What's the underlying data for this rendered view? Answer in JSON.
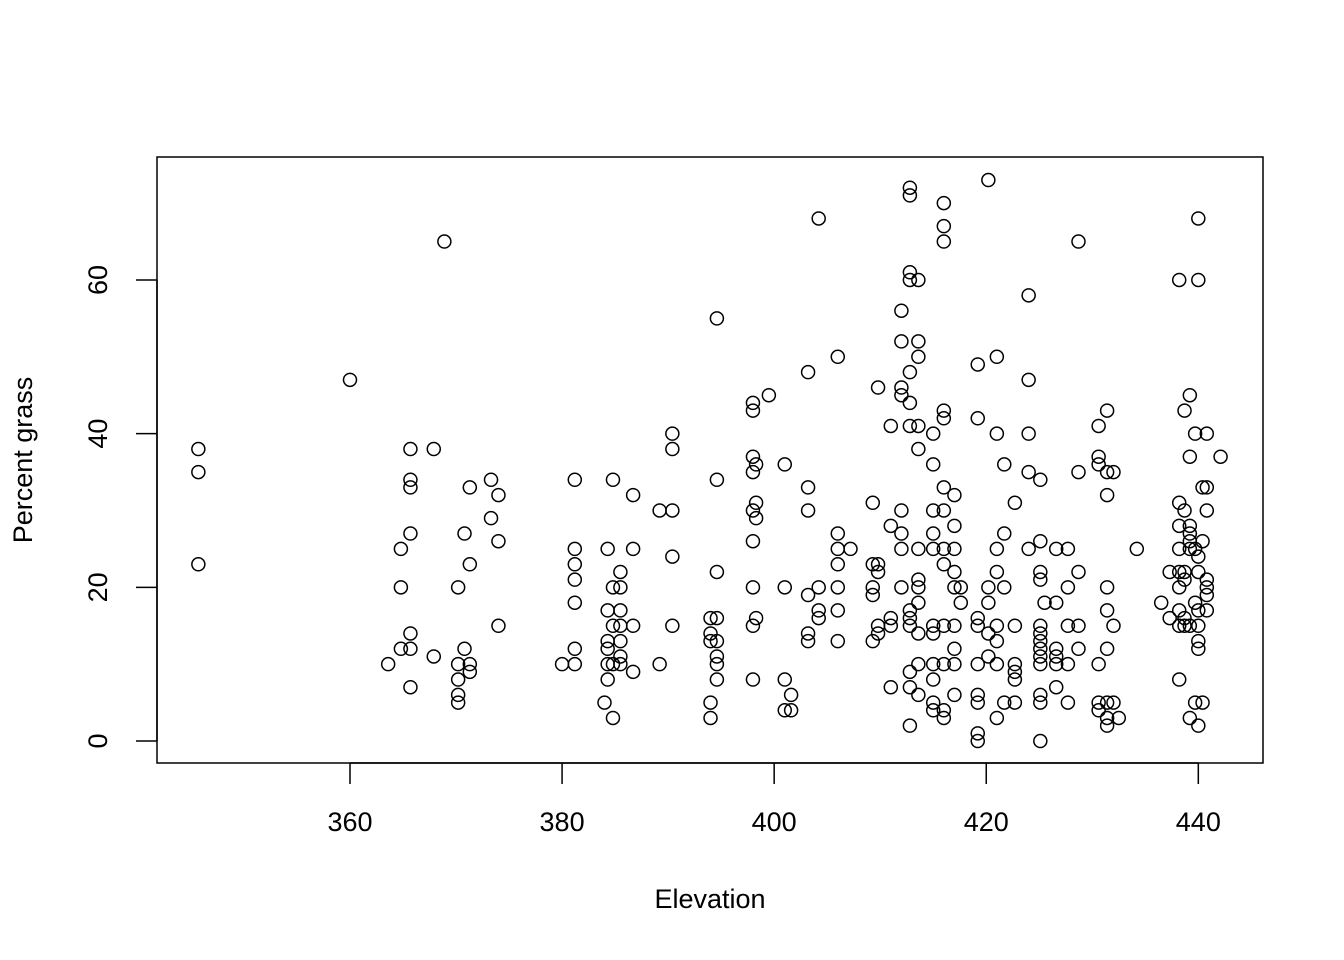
{
  "chart_data": {
    "type": "scatter",
    "x_label": "Elevation",
    "y_label": "Percent grass",
    "xlim": [
      341.8,
      446.1
    ],
    "ylim": [
      -2.86,
      76
    ],
    "xticks": [
      360,
      380,
      400,
      420,
      440
    ],
    "yticks": [
      0,
      20,
      40,
      60
    ],
    "color": "#000000",
    "x": [
      345.7,
      345.7,
      345.7,
      360,
      363.6,
      364.8,
      364.8,
      364.8,
      365.7,
      365.7,
      365.7,
      365.7,
      365.7,
      365.7,
      365.7,
      367.9,
      367.9,
      368.9,
      370.2,
      370.2,
      370.2,
      370.2,
      370.2,
      370.8,
      370.8,
      371.3,
      371.3,
      371.3,
      371.3,
      373.3,
      373.3,
      374,
      374,
      374,
      380,
      381.2,
      381.2,
      381.2,
      381.2,
      381.2,
      381.2,
      381.2,
      384,
      384.3,
      384.3,
      384.3,
      384.3,
      384.3,
      384.3,
      384.8,
      384.8,
      384.8,
      384.8,
      384.8,
      385.5,
      385.5,
      385.5,
      385.5,
      385.5,
      385.5,
      385.5,
      386.7,
      386.7,
      386.7,
      386.7,
      389.2,
      389.2,
      390.4,
      390.4,
      390.4,
      390.4,
      390.4,
      394,
      394,
      394,
      394,
      394,
      394.6,
      394.6,
      394.6,
      394.6,
      394.6,
      394.6,
      394.6,
      394.6,
      398,
      398,
      398,
      398,
      398,
      398,
      398,
      398,
      398,
      398.3,
      398.3,
      398.3,
      398.3,
      399.5,
      401,
      401,
      401,
      401,
      401.6,
      401.6,
      403.2,
      403.2,
      403.2,
      403.2,
      403.2,
      403.2,
      404.2,
      404.2,
      404.2,
      404.2,
      406,
      406,
      406,
      406,
      406,
      406,
      406,
      407.2,
      409.3,
      409.3,
      409.3,
      409.3,
      409.3,
      409.8,
      409.8,
      409.8,
      409.8,
      409.8,
      411,
      411,
      411,
      411,
      411,
      412,
      412,
      412,
      412,
      412,
      412,
      412,
      412,
      412.8,
      412.8,
      412.8,
      412.8,
      412.8,
      412.8,
      412.8,
      412.8,
      412.8,
      412.8,
      412.8,
      412.8,
      412.8,
      413.6,
      413.6,
      413.6,
      413.6,
      413.6,
      413.6,
      413.6,
      413.6,
      413.6,
      413.6,
      413.6,
      413.6,
      415,
      415,
      415,
      415,
      415,
      415,
      415,
      415,
      415,
      415,
      415,
      416,
      416,
      416,
      416,
      416,
      416,
      416,
      416,
      416,
      416,
      416,
      416,
      416,
      417,
      417,
      417,
      417,
      417,
      417,
      417,
      417,
      417,
      417.6,
      417.6,
      419.2,
      419.2,
      419.2,
      419.2,
      419.2,
      419.2,
      419.2,
      419.2,
      419.2,
      420.2,
      420.2,
      420.2,
      420.2,
      420.2,
      421,
      421,
      421,
      421,
      421,
      421,
      421,
      421,
      421.7,
      421.7,
      421.7,
      421.7,
      422.7,
      422.7,
      422.7,
      422.7,
      422.7,
      422.7,
      424,
      424,
      424,
      424,
      424,
      425.1,
      425.1,
      425.1,
      425.1,
      425.1,
      425.1,
      425.1,
      425.1,
      425.1,
      425.1,
      425.1,
      425.1,
      425.1,
      425.5,
      426.6,
      426.6,
      426.6,
      426.6,
      426.6,
      426.6,
      427.7,
      427.7,
      427.7,
      427.7,
      427.7,
      428.7,
      428.7,
      428.7,
      428.7,
      428.7,
      430.6,
      430.6,
      430.6,
      430.6,
      430.6,
      430.6,
      431.4,
      431.4,
      431.4,
      431.4,
      431.4,
      431.4,
      431.4,
      431.4,
      431.4,
      432,
      432,
      432,
      432.5,
      434.2,
      436.5,
      437.3,
      437.3,
      438.2,
      438.2,
      438.2,
      438.2,
      438.2,
      438.2,
      438.2,
      438.2,
      438.2,
      438.7,
      438.7,
      438.7,
      438.7,
      438.7,
      438.7,
      439.2,
      439.2,
      439.2,
      439.2,
      439.2,
      439.2,
      439.2,
      439.2,
      439.7,
      439.7,
      439.7,
      439.7,
      440,
      440,
      440,
      440,
      440,
      440,
      440,
      440,
      440,
      440.4,
      440.4,
      440.4,
      440.8,
      440.8,
      440.8,
      440.8,
      440.8,
      440.8,
      440.8,
      442.1
    ],
    "values": [
      38,
      35,
      23,
      47,
      10,
      25,
      20,
      12,
      38,
      34,
      33,
      27,
      14,
      12,
      7,
      38,
      11,
      65,
      20,
      10,
      8,
      6,
      5,
      27,
      12,
      33,
      23,
      10,
      9,
      34,
      29,
      32,
      26,
      15,
      10,
      34,
      25,
      23,
      21,
      18,
      12,
      10,
      5,
      25,
      17,
      13,
      12,
      10,
      8,
      34,
      20,
      15,
      10,
      3,
      22,
      20,
      17,
      15,
      13,
      11,
      10,
      32,
      25,
      15,
      9,
      30,
      10,
      40,
      38,
      30,
      24,
      15,
      16,
      14,
      13,
      5,
      3,
      55,
      34,
      22,
      16,
      13,
      11,
      10,
      8,
      44,
      43,
      37,
      35,
      30,
      26,
      20,
      15,
      8,
      36,
      31,
      29,
      16,
      45,
      36,
      20,
      8,
      4,
      6,
      4,
      48,
      33,
      30,
      19,
      14,
      13,
      68,
      20,
      17,
      16,
      50,
      27,
      25,
      23,
      20,
      17,
      13,
      25,
      31,
      23,
      20,
      19,
      13,
      46,
      23,
      22,
      15,
      14,
      41,
      28,
      16,
      15,
      7,
      56,
      52,
      46,
      45,
      30,
      27,
      25,
      20,
      72,
      71,
      61,
      60,
      48,
      44,
      41,
      17,
      16,
      15,
      9,
      7,
      2,
      60,
      52,
      50,
      41,
      38,
      25,
      21,
      20,
      18,
      14,
      10,
      6,
      40,
      36,
      30,
      27,
      25,
      15,
      14,
      10,
      8,
      5,
      4,
      70,
      67,
      65,
      43,
      42,
      33,
      30,
      25,
      23,
      15,
      10,
      4,
      3,
      32,
      28,
      25,
      22,
      20,
      15,
      12,
      10,
      6,
      20,
      18,
      49,
      42,
      16,
      15,
      10,
      6,
      5,
      1,
      0,
      73,
      20,
      18,
      14,
      11,
      50,
      40,
      25,
      22,
      15,
      13,
      10,
      3,
      36,
      27,
      20,
      5,
      31,
      15,
      10,
      9,
      8,
      5,
      58,
      47,
      40,
      35,
      25,
      34,
      26,
      22,
      21,
      15,
      14,
      13,
      12,
      11,
      10,
      6,
      5,
      0,
      18,
      25,
      18,
      12,
      11,
      10,
      7,
      25,
      20,
      15,
      10,
      5,
      65,
      35,
      22,
      15,
      12,
      41,
      37,
      36,
      10,
      5,
      4,
      43,
      35,
      32,
      20,
      17,
      12,
      5,
      3,
      2,
      35,
      15,
      5,
      3,
      25,
      18,
      22,
      16,
      60,
      31,
      28,
      25,
      22,
      20,
      17,
      15,
      8,
      43,
      30,
      22,
      21,
      16,
      15,
      45,
      37,
      28,
      27,
      26,
      25,
      15,
      3,
      40,
      25,
      18,
      5,
      68,
      60,
      24,
      22,
      17,
      15,
      13,
      12,
      2,
      33,
      26,
      5,
      40,
      33,
      30,
      21,
      20,
      19,
      17,
      37
    ]
  }
}
